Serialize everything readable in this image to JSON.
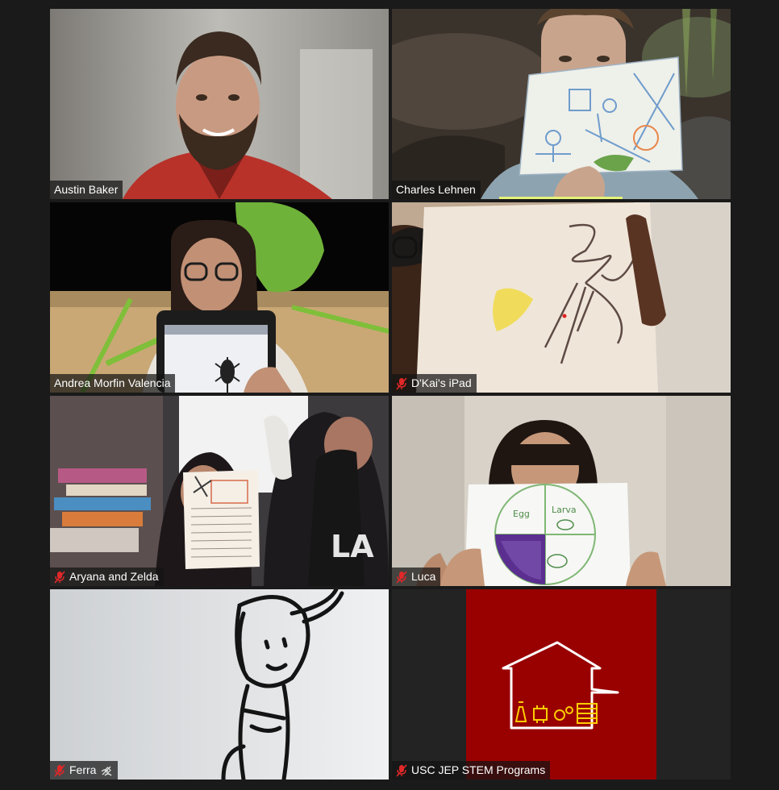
{
  "participants": [
    {
      "name": "Austin Baker",
      "muted": false
    },
    {
      "name": "Charles Lehnen",
      "muted": false
    },
    {
      "name": "Andrea Morfin Valencia",
      "muted": false
    },
    {
      "name": "D'Kai's iPad",
      "muted": true
    },
    {
      "name": "Aryana and Zelda",
      "muted": true
    },
    {
      "name": "Luca",
      "muted": true
    },
    {
      "name": "Ferra",
      "muted": true
    },
    {
      "name": "USC JEP STEM Programs",
      "muted": true
    }
  ],
  "drawings": {
    "lifecycle_labels": [
      "Egg",
      "Larva"
    ]
  },
  "colors": {
    "active_speaker": "#e5f27a",
    "muted_icon": "#e02828",
    "usc_bg": "#990000",
    "usc_logo": "#ffffff",
    "usc_gold": "#ffcc00"
  }
}
